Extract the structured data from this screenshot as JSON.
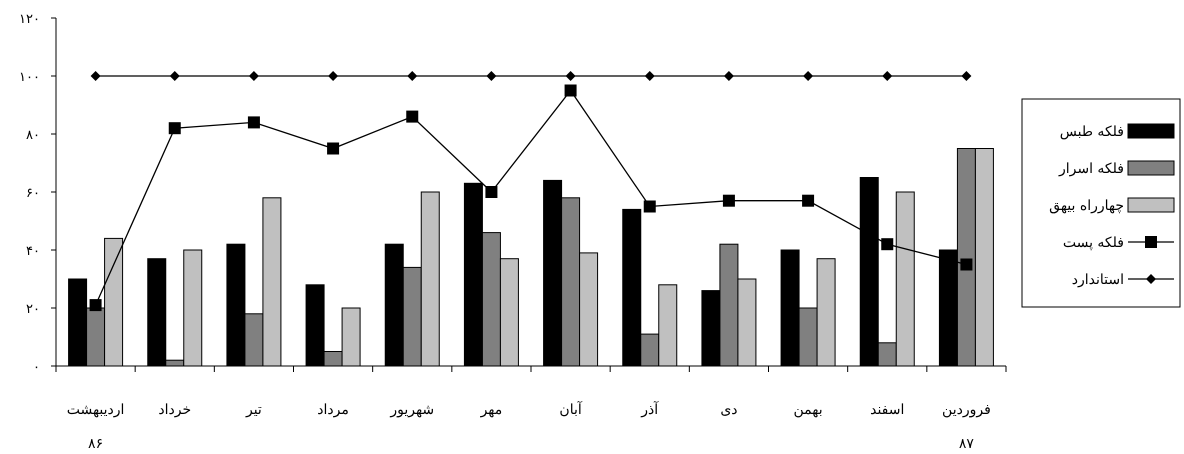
{
  "chart_data": {
    "type": "bar",
    "title": "",
    "xlabel": "",
    "ylabel": "",
    "ylim": [
      0,
      120
    ],
    "yticks": [
      "۰",
      "۲۰",
      "۴۰",
      "۶۰",
      "۸۰",
      "۱۰۰",
      "۱۲۰"
    ],
    "categories": [
      "اردیبهشت",
      "خرداد",
      "تیر",
      "مرداد",
      "شهریور",
      "مهر",
      "آبان",
      "آذر",
      "دی",
      "بهمن",
      "اسفند",
      "فروردین"
    ],
    "category_sublabels": [
      "۸۶",
      "",
      "",
      "",
      "",
      "",
      "",
      "",
      "",
      "",
      "",
      "۸۷"
    ],
    "grid": false,
    "legend_position": "right",
    "series": [
      {
        "name": "فلکه طبس",
        "kind": "bar",
        "color": "#000000",
        "values": [
          30,
          37,
          42,
          28,
          42,
          63,
          64,
          54,
          26,
          40,
          65,
          40
        ]
      },
      {
        "name": "فلکه اسرار",
        "kind": "bar",
        "color": "#808080",
        "values": [
          20,
          2,
          18,
          5,
          34,
          46,
          58,
          11,
          42,
          20,
          8,
          75
        ]
      },
      {
        "name": "چهارراه بیهق",
        "kind": "bar",
        "color": "#c0c0c0",
        "values": [
          44,
          40,
          58,
          20,
          60,
          37,
          39,
          28,
          30,
          37,
          60,
          75
        ]
      },
      {
        "name": "فلکه پست",
        "kind": "line",
        "marker": "square",
        "color": "#000000",
        "values": [
          21,
          82,
          84,
          75,
          86,
          60,
          95,
          55,
          57,
          57,
          42,
          35
        ]
      },
      {
        "name": "استاندارد",
        "kind": "line",
        "marker": "diamond",
        "color": "#000000",
        "values": [
          100,
          100,
          100,
          100,
          100,
          100,
          100,
          100,
          100,
          100,
          100,
          100
        ]
      }
    ]
  }
}
